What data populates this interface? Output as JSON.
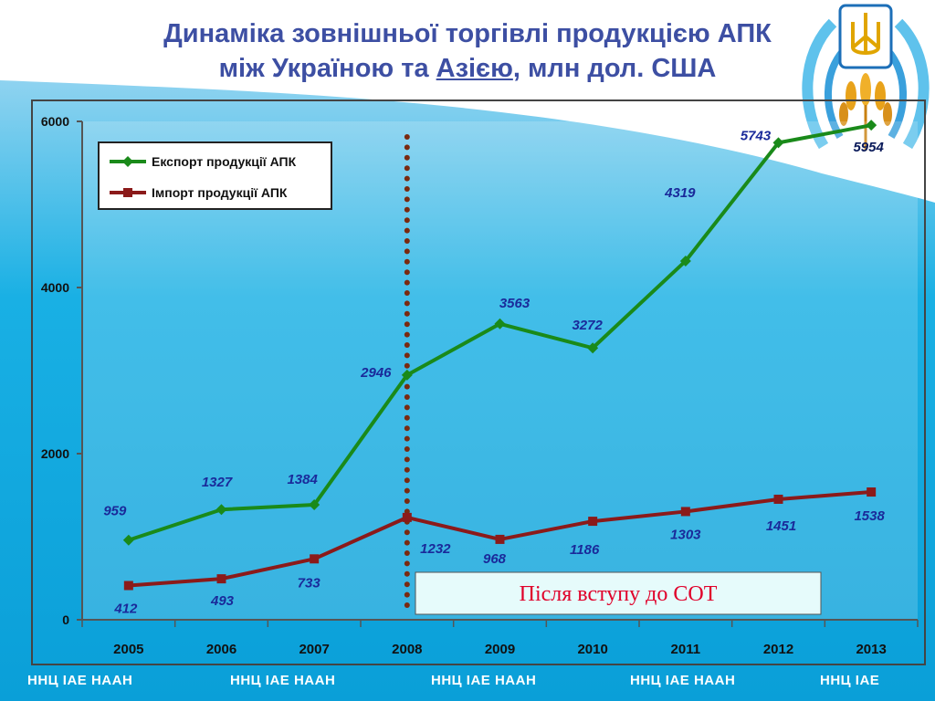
{
  "slide": {
    "title_line1": "Динаміка зовнішньої торгівлі продукцією АПК",
    "title_line2_prefix": "між Україною та ",
    "title_line2_region": "Азією",
    "title_line2_suffix": ", млн дол. США",
    "footer": [
      "ННЦ ІАЕ  НААН",
      "ННЦ ІАЕ  НААН",
      "ННЦ ІАЕ  НААН",
      "ННЦ ІАЕ  НААН",
      "ННЦ ІАЕ"
    ],
    "colors": {
      "title": "#3d4fa3",
      "background_wave": "#0aa6dc",
      "annotation_text": "#e0002a"
    }
  },
  "chart_data": {
    "type": "line",
    "categories": [
      "2005",
      "2006",
      "2007",
      "2008",
      "2009",
      "2010",
      "2011",
      "2012",
      "2013"
    ],
    "series": [
      {
        "name": "Експорт продукції АПК",
        "color": "#1a8a1a",
        "values": [
          959,
          1327,
          1384,
          2946,
          3563,
          3272,
          4319,
          5743,
          5954
        ]
      },
      {
        "name": "Імпорт продукції АПК",
        "color": "#8b1a1a",
        "values": [
          412,
          493,
          733,
          1232,
          968,
          1186,
          1303,
          1451,
          1538
        ]
      }
    ],
    "y_ticks": [
      "0",
      "2000",
      "4000",
      "6000"
    ],
    "ylim": [
      0,
      6000
    ],
    "grid": false,
    "legend_position": "top-left",
    "marker_line_category": "2008",
    "annotation": "Після вступу до СОТ"
  }
}
